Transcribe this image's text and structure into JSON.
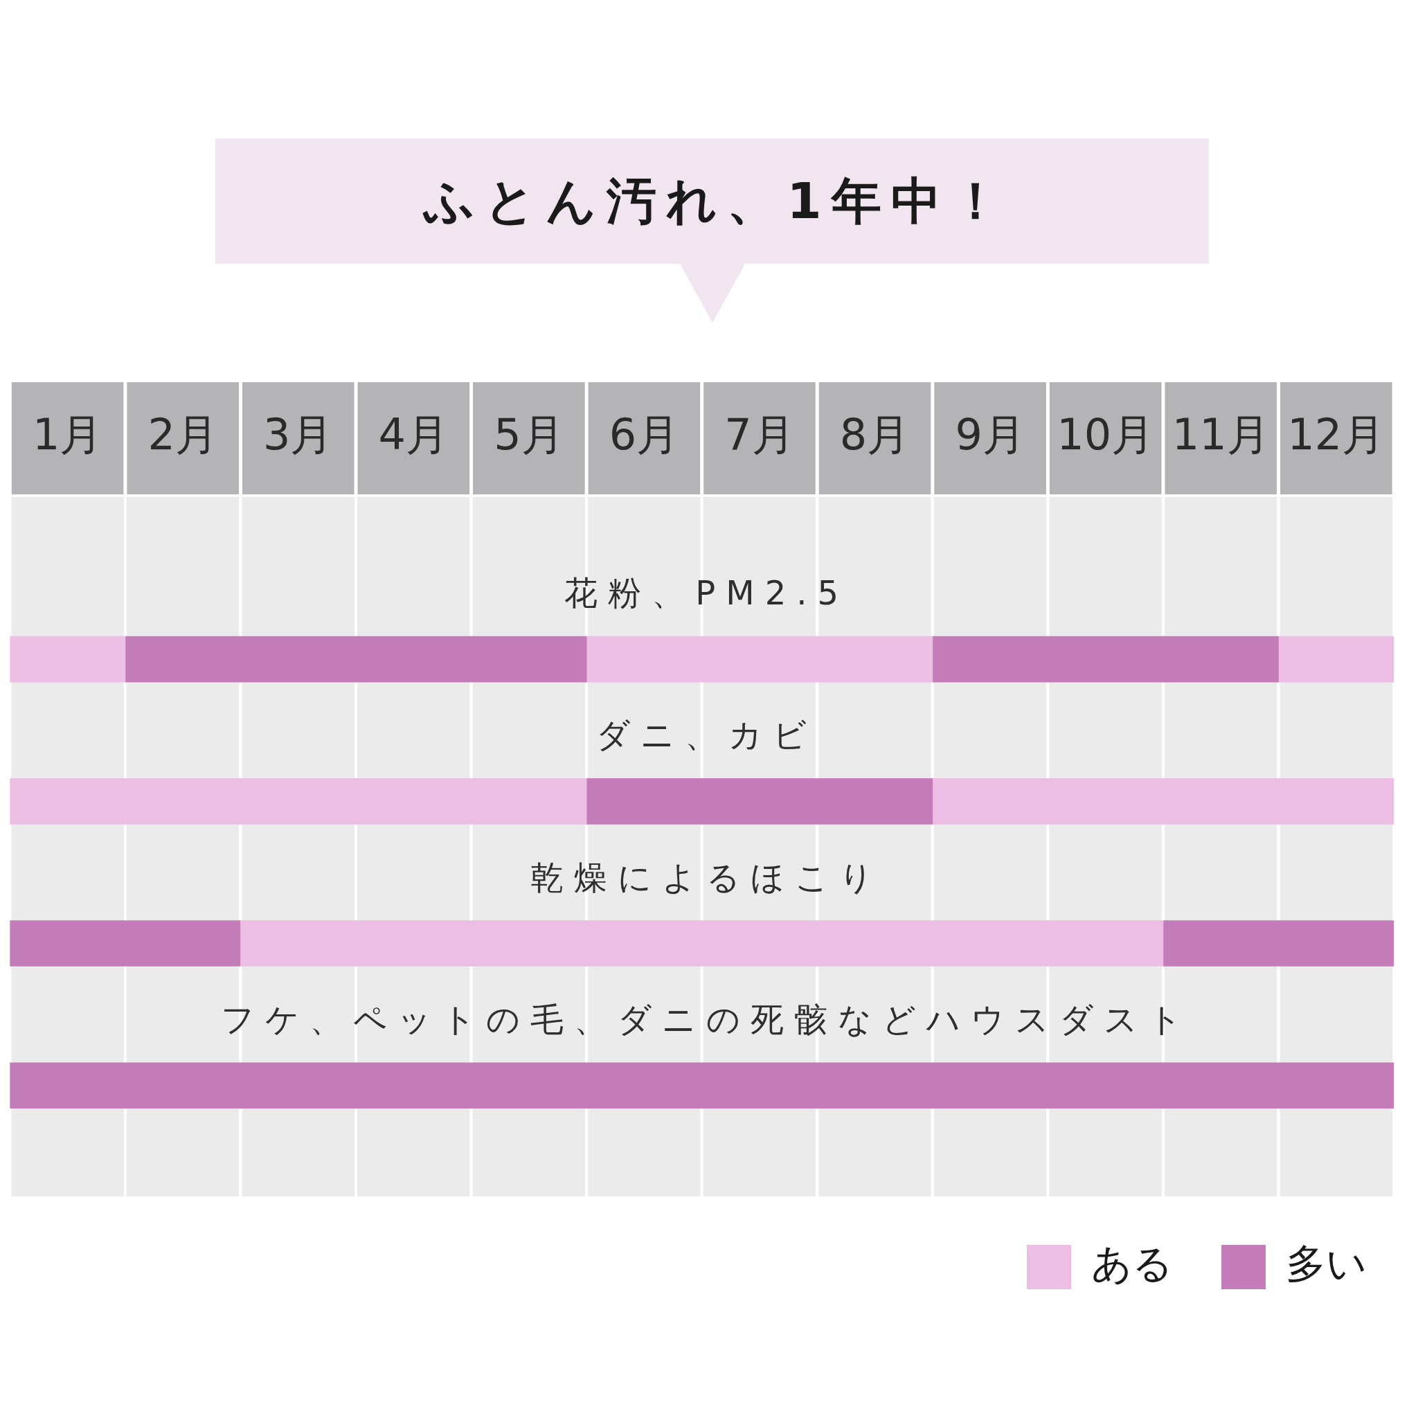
{
  "chart_data": {
    "type": "bar",
    "orientation": "horizontal",
    "title": "ふとん汚れ、1年中！",
    "categories": [
      "花粉、PM2.5",
      "ダニ、カビ",
      "乾燥によるほこり",
      "フケ、ペットの毛、ダニの死骸などハウスダスト"
    ],
    "xlim": [
      0.5,
      12.5
    ],
    "xticks": [
      {
        "value": 1,
        "label": "1月"
      },
      {
        "value": 2,
        "label": "2月"
      },
      {
        "value": 3,
        "label": "3月"
      },
      {
        "value": 4,
        "label": "4月"
      },
      {
        "value": 5,
        "label": "5月"
      },
      {
        "value": 6,
        "label": "6月"
      },
      {
        "value": 7,
        "label": "7月"
      },
      {
        "value": 8,
        "label": "8月"
      },
      {
        "value": 9,
        "label": "9月"
      },
      {
        "value": 10,
        "label": "10月"
      },
      {
        "value": 11,
        "label": "11月"
      },
      {
        "value": 12,
        "label": "12月"
      }
    ],
    "series": [
      {
        "name": "ある",
        "color": "#ecbee4",
        "values": [
          1,
          5,
          8,
          null
        ],
        "base": [
          0.5,
          0.5,
          2.5,
          null
        ]
      },
      {
        "name": "多い",
        "color": "#c57db9",
        "values": [
          4,
          3,
          2,
          12
        ],
        "base": [
          1.5,
          5.5,
          0.5,
          0.5
        ]
      },
      {
        "color": "#ecbee4",
        "values": [
          3,
          4,
          null,
          null
        ],
        "base": [
          5.5,
          8.5,
          null,
          null
        ]
      },
      {
        "color": "#c57db9",
        "values": [
          3,
          null,
          2,
          null
        ],
        "base": [
          8.5,
          null,
          10.5,
          null
        ]
      },
      {
        "color": "#ecbee4",
        "values": [
          1,
          null,
          null,
          null
        ],
        "base": [
          11.5,
          null,
          null,
          null
        ]
      }
    ],
    "bands": [
      {
        "axis": "x",
        "from": 0.5,
        "to": 1.5,
        "color": "#ebebeb"
      },
      {
        "axis": "x",
        "from": 1.5,
        "to": 2.5,
        "color": "#ebebeb"
      },
      {
        "axis": "x",
        "from": 2.5,
        "to": 3.5,
        "color": "#ebebeb"
      },
      {
        "axis": "x",
        "from": 3.5,
        "to": 4.5,
        "color": "#ebebeb"
      },
      {
        "axis": "x",
        "from": 4.5,
        "to": 5.5,
        "color": "#ebebeb"
      },
      {
        "axis": "x",
        "from": 5.5,
        "to": 6.5,
        "color": "#ebebeb"
      },
      {
        "axis": "x",
        "from": 6.5,
        "to": 7.5,
        "color": "#ebebeb"
      },
      {
        "axis": "x",
        "from": 7.5,
        "to": 8.5,
        "color": "#ebebeb"
      },
      {
        "axis": "x",
        "from": 8.5,
        "to": 9.5,
        "color": "#ebebeb"
      },
      {
        "axis": "x",
        "from": 9.5,
        "to": 10.5,
        "color": "#ebebeb"
      },
      {
        "axis": "x",
        "from": 10.5,
        "to": 11.5,
        "color": "#ebebeb"
      },
      {
        "axis": "x",
        "from": 11.5,
        "to": 12.5,
        "color": "#ebebeb"
      }
    ],
    "legend": "bottom right"
  }
}
